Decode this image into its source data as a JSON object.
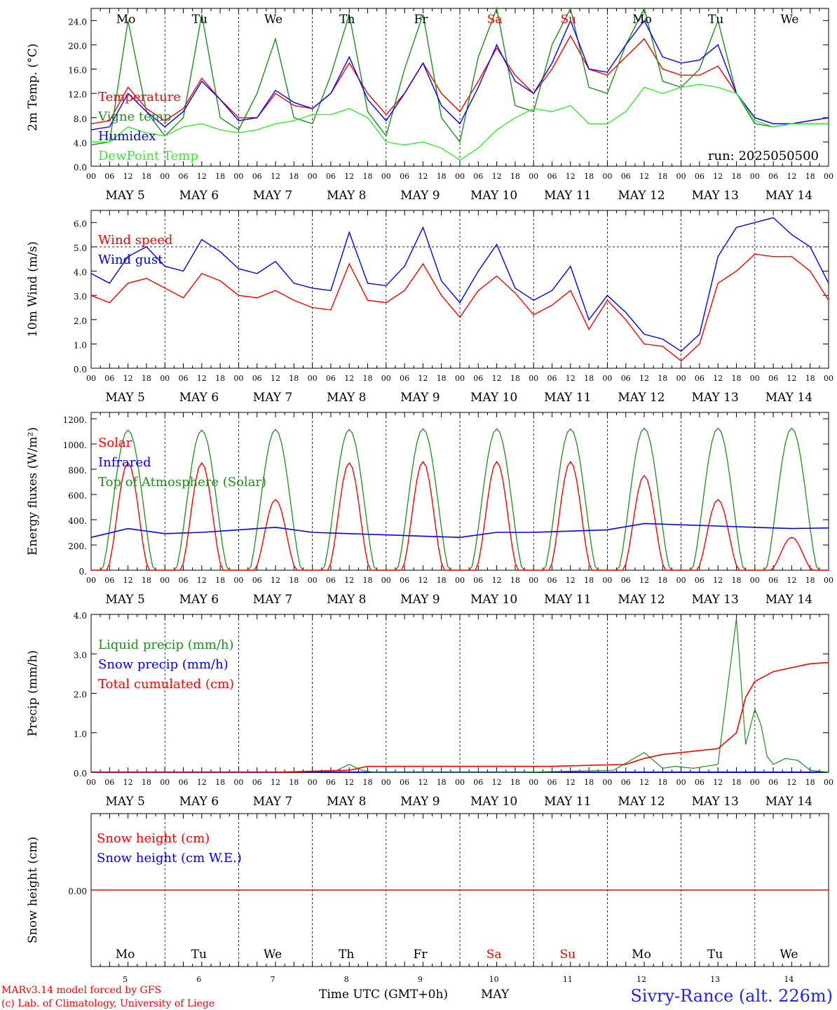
{
  "colors": {
    "red": "#ff0000",
    "green": "#228b22",
    "light_green": "#33ee33",
    "blue": "#0000ff",
    "weekday": "#000000",
    "weekend": "#ff0000",
    "station": "#2222ff"
  },
  "hour_labels": [
    "00",
    "06",
    "12",
    "18"
  ],
  "final_hour_label": "00",
  "date_labels": [
    "MAY  5",
    "MAY  6",
    "MAY  7",
    "MAY  8",
    "MAY  9",
    "MAY 10",
    "MAY 11",
    "MAY 12",
    "MAY 13",
    "MAY 14"
  ],
  "day_names": [
    {
      "t": "Mo",
      "w": false
    },
    {
      "t": "Tu",
      "w": false
    },
    {
      "t": "We",
      "w": false
    },
    {
      "t": "Th",
      "w": false
    },
    {
      "t": "Fr",
      "w": false
    },
    {
      "t": "Sa",
      "w": true
    },
    {
      "t": "Su",
      "w": true
    },
    {
      "t": "Mo",
      "w": false
    },
    {
      "t": "Tu",
      "w": false
    },
    {
      "t": "We",
      "w": false
    }
  ],
  "bottom_day_numbers": [
    "5",
    "6",
    "7",
    "8",
    "9",
    "10",
    "11",
    "12",
    "13",
    "14"
  ],
  "run_label": "run: 2025050500",
  "footer": {
    "model": "MARv3.14 model forced by GFS",
    "lab": "(c) Lab. of Climatology, University of Liege",
    "xlabel": "Time UTC (GMT+0h)",
    "month": "MAY",
    "station": "Sivry-Rance (alt. 226m)"
  },
  "chart_data": [
    {
      "type": "line",
      "ylabel": "2m Temp. (°C)",
      "ylim": [
        0,
        26
      ],
      "yticks": [
        "0.0",
        "4.0",
        "8.0",
        "12.0",
        "16.0",
        "20.0",
        "24.0"
      ],
      "ytick_values": [
        0,
        4,
        8,
        12,
        16,
        20,
        24
      ],
      "x_unit": "hours since May 5 00 UTC",
      "series": [
        {
          "name": "Temperature",
          "color": "red",
          "x": [
            0,
            6,
            12,
            18,
            24,
            30,
            36,
            42,
            48,
            54,
            60,
            66,
            72,
            78,
            84,
            90,
            96,
            102,
            108,
            114,
            120,
            126,
            132,
            138,
            144,
            150,
            156,
            162,
            168,
            174,
            180,
            186,
            192,
            198,
            204,
            210,
            216,
            222,
            228,
            234,
            240
          ],
          "y": [
            7.0,
            7.5,
            13.0,
            9.5,
            7.5,
            9.5,
            14.5,
            11.0,
            8.0,
            8.0,
            12.0,
            10.0,
            9.5,
            12.0,
            17.0,
            12.0,
            8.5,
            12.0,
            17.0,
            12.0,
            9.0,
            14.0,
            19.5,
            15.0,
            12.0,
            16.0,
            21.5,
            16.0,
            15.0,
            18.0,
            21.0,
            16.0,
            15.0,
            15.0,
            16.5,
            12.0,
            8.0,
            7.0,
            7.0,
            7.5,
            8.0
          ]
        },
        {
          "name": "Vigne temp",
          "color": "green",
          "x": [
            0,
            6,
            12,
            18,
            24,
            30,
            36,
            42,
            48,
            54,
            60,
            66,
            72,
            78,
            84,
            90,
            96,
            102,
            108,
            114,
            120,
            126,
            132,
            138,
            144,
            150,
            156,
            162,
            168,
            174,
            180,
            186,
            192,
            198,
            204,
            210,
            216,
            222,
            228,
            234,
            240
          ],
          "y": [
            3.5,
            4.0,
            24.0,
            9.0,
            5.0,
            8.0,
            25.0,
            8.0,
            6.0,
            12.0,
            21.0,
            8.0,
            7.0,
            15.0,
            25.0,
            9.0,
            5.0,
            16.0,
            25.0,
            8.0,
            4.0,
            18.0,
            26.0,
            10.0,
            9.0,
            20.0,
            26.0,
            13.0,
            12.0,
            20.0,
            26.0,
            14.0,
            13.0,
            16.0,
            24.0,
            12.0,
            7.0,
            6.5,
            7.0,
            7.0,
            7.0
          ]
        },
        {
          "name": "Humidex",
          "color": "blue",
          "x": [
            0,
            6,
            12,
            18,
            24,
            30,
            36,
            42,
            48,
            54,
            60,
            66,
            72,
            78,
            84,
            90,
            96,
            102,
            108,
            114,
            120,
            126,
            132,
            138,
            144,
            150,
            156,
            162,
            168,
            174,
            180,
            186,
            192,
            198,
            204,
            210,
            216,
            222,
            228,
            234,
            240
          ],
          "y": [
            6.0,
            6.5,
            12.0,
            9.0,
            6.5,
            9.0,
            14.0,
            11.0,
            7.5,
            8.0,
            12.5,
            10.5,
            9.5,
            12.0,
            18.0,
            11.0,
            7.5,
            12.0,
            17.0,
            10.0,
            7.0,
            13.0,
            20.0,
            14.0,
            12.0,
            17.0,
            24.0,
            16.0,
            15.5,
            20.0,
            24.0,
            18.0,
            17.0,
            17.5,
            20.0,
            12.0,
            8.0,
            7.0,
            7.0,
            7.5,
            8.0
          ]
        },
        {
          "name": "DewPoint Temp",
          "color": "light_green",
          "x": [
            0,
            6,
            12,
            18,
            24,
            30,
            36,
            42,
            48,
            54,
            60,
            66,
            72,
            78,
            84,
            90,
            96,
            102,
            108,
            114,
            120,
            126,
            132,
            138,
            144,
            150,
            156,
            162,
            168,
            174,
            180,
            186,
            192,
            198,
            204,
            210,
            216,
            222,
            228,
            234,
            240
          ],
          "y": [
            4.0,
            4.0,
            6.5,
            5.5,
            5.0,
            6.5,
            7.0,
            6.0,
            5.5,
            6.0,
            7.0,
            7.5,
            8.5,
            8.5,
            9.5,
            8.0,
            4.0,
            3.5,
            4.0,
            3.0,
            1.0,
            3.0,
            6.0,
            8.0,
            9.5,
            9.0,
            10.0,
            7.0,
            7.0,
            9.0,
            13.0,
            12.0,
            13.0,
            13.5,
            13.0,
            12.0,
            7.5,
            6.5,
            7.0,
            7.0,
            7.0
          ]
        }
      ],
      "threshold_line": null
    },
    {
      "type": "line",
      "ylabel": "10m Wind (m/s)",
      "ylim": [
        0,
        6.5
      ],
      "yticks": [
        "0.0",
        "1.0",
        "2.0",
        "3.0",
        "4.0",
        "5.0",
        "6.0"
      ],
      "ytick_values": [
        0,
        1,
        2,
        3,
        4,
        5,
        6
      ],
      "x_unit": "hours since May 5 00 UTC",
      "dashed_y": 5.0,
      "series": [
        {
          "name": "Wind speed",
          "color": "red",
          "x": [
            0,
            6,
            12,
            18,
            24,
            30,
            36,
            42,
            48,
            54,
            60,
            66,
            72,
            78,
            84,
            90,
            96,
            102,
            108,
            114,
            120,
            126,
            132,
            138,
            144,
            150,
            156,
            162,
            168,
            174,
            180,
            186,
            192,
            198,
            204,
            210,
            216,
            222,
            228,
            234,
            240
          ],
          "y": [
            3.0,
            2.7,
            3.5,
            3.7,
            3.3,
            2.9,
            3.9,
            3.6,
            3.0,
            2.9,
            3.2,
            2.8,
            2.5,
            2.4,
            4.3,
            2.8,
            2.7,
            3.2,
            4.3,
            3.0,
            2.1,
            3.2,
            3.8,
            3.1,
            2.2,
            2.6,
            3.2,
            1.6,
            2.8,
            2.0,
            1.0,
            0.9,
            0.3,
            1.0,
            3.5,
            4.0,
            4.7,
            4.6,
            4.6,
            4.0,
            2.8
          ]
        },
        {
          "name": "Wind gust",
          "color": "blue",
          "x": [
            0,
            6,
            12,
            18,
            24,
            30,
            36,
            42,
            48,
            54,
            60,
            66,
            72,
            78,
            84,
            90,
            96,
            102,
            108,
            114,
            120,
            126,
            132,
            138,
            144,
            150,
            156,
            162,
            168,
            174,
            180,
            186,
            192,
            198,
            204,
            210,
            216,
            222,
            228,
            234,
            240
          ],
          "y": [
            3.9,
            3.5,
            4.6,
            5.0,
            4.2,
            4.0,
            5.3,
            4.8,
            4.1,
            3.9,
            4.4,
            3.5,
            3.3,
            3.2,
            5.6,
            3.5,
            3.4,
            4.2,
            5.8,
            3.6,
            2.7,
            4.0,
            5.1,
            3.3,
            2.8,
            3.2,
            4.2,
            2.0,
            3.0,
            2.3,
            1.4,
            1.2,
            0.7,
            1.4,
            4.6,
            5.8,
            6.0,
            6.2,
            5.5,
            5.0,
            3.5
          ]
        }
      ]
    },
    {
      "type": "line",
      "ylabel": "Energy fluxes (W/m²)",
      "ylim": [
        0,
        1250
      ],
      "yticks": [
        "0.",
        "200.",
        "400.",
        "600.",
        "800.",
        "1000.",
        "1200."
      ],
      "ytick_values": [
        0,
        200,
        400,
        600,
        800,
        1000,
        1200
      ],
      "x_unit": "hours since May 5 00 UTC",
      "toa_peak": [
        1110,
        1110,
        1115,
        1115,
        1120,
        1120,
        1120,
        1125,
        1125,
        1125
      ],
      "series": [
        {
          "name": "Solar",
          "color": "red",
          "kind": "daily",
          "peak": [
            850,
            850,
            560,
            850,
            860,
            860,
            860,
            750,
            560,
            260
          ]
        },
        {
          "name": "Infrared",
          "color": "blue",
          "x": [
            0,
            12,
            24,
            36,
            48,
            60,
            72,
            84,
            96,
            108,
            120,
            132,
            144,
            156,
            168,
            180,
            192,
            204,
            216,
            228,
            240
          ],
          "y": [
            260,
            330,
            290,
            300,
            320,
            340,
            300,
            290,
            280,
            270,
            260,
            300,
            300,
            310,
            320,
            370,
            360,
            350,
            340,
            330,
            335
          ]
        },
        {
          "name": "Top of Atmosphere (Solar)",
          "color": "green",
          "kind": "toa"
        }
      ]
    },
    {
      "type": "line",
      "ylabel": "Precip (mm/h)",
      "ylim": [
        0,
        4.0
      ],
      "yticks": [
        "0.0",
        "1.0",
        "2.0",
        "3.0",
        "4.0"
      ],
      "ytick_values": [
        0,
        1,
        2,
        3,
        4
      ],
      "x_unit": "hours since May 5 00 UTC",
      "series": [
        {
          "name": "Liquid precip (mm/h)",
          "color": "green",
          "x": [
            0,
            60,
            80,
            84,
            88,
            92,
            140,
            170,
            180,
            186,
            190,
            196,
            204,
            210,
            213,
            216,
            218,
            220,
            222,
            226,
            230,
            234,
            240
          ],
          "y": [
            0,
            0,
            0.05,
            0.2,
            0.05,
            0,
            0,
            0.05,
            0.5,
            0.1,
            0.15,
            0.1,
            0.2,
            3.9,
            0.7,
            1.6,
            1.2,
            0.4,
            0.2,
            0.35,
            0.3,
            0.05,
            0
          ]
        },
        {
          "name": "Snow precip (mm/h)",
          "color": "blue",
          "x": [
            0,
            240
          ],
          "y": [
            0,
            0
          ]
        },
        {
          "name": "Total cumulated (cm)",
          "color": "red",
          "x": [
            0,
            60,
            84,
            90,
            96,
            150,
            174,
            180,
            186,
            192,
            204,
            210,
            213,
            216,
            222,
            228,
            234,
            240
          ],
          "y": [
            0,
            0,
            0.05,
            0.15,
            0.15,
            0.15,
            0.2,
            0.35,
            0.45,
            0.5,
            0.6,
            1.0,
            1.9,
            2.3,
            2.55,
            2.65,
            2.75,
            2.78
          ]
        }
      ]
    },
    {
      "type": "line",
      "ylabel": "Snow height (cm)",
      "ylim": [
        -1,
        1
      ],
      "yticks": [
        "0.00"
      ],
      "ytick_values": [
        0
      ],
      "x_unit": "hours since May 5 00 UTC",
      "series": [
        {
          "name": "Snow height (cm)",
          "color": "red",
          "x": [
            0,
            240
          ],
          "y": [
            0,
            0
          ]
        },
        {
          "name": "Snow height (cm W.E.)",
          "color": "blue",
          "x": [
            0,
            240
          ],
          "y": [
            0,
            0
          ]
        }
      ]
    }
  ]
}
